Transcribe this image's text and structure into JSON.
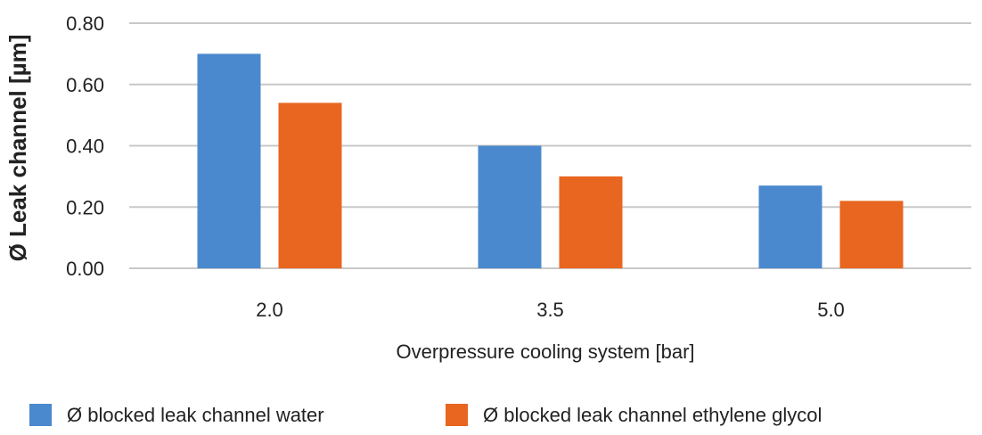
{
  "chart_data": {
    "type": "bar",
    "categories": [
      "2.0",
      "3.5",
      "5.0"
    ],
    "series": [
      {
        "name": "Ø blocked leak channel water",
        "values": [
          0.7,
          0.4,
          0.27
        ],
        "color": "#4A89CE"
      },
      {
        "name": "Ø blocked leak channel ethylene glycol",
        "values": [
          0.54,
          0.3,
          0.22
        ],
        "color": "#E8661F"
      }
    ],
    "title": "",
    "xlabel": "Overpressure cooling system [bar]",
    "ylabel": "Ø Leak channel [µm]",
    "ylim": [
      0,
      0.8
    ],
    "yticks": [
      "0.00",
      "0.20",
      "0.40",
      "0.60",
      "0.80"
    ],
    "grid": true,
    "legend_position": "bottom",
    "colors": {
      "grid": "#C8C8C8",
      "text": "#222222"
    }
  }
}
